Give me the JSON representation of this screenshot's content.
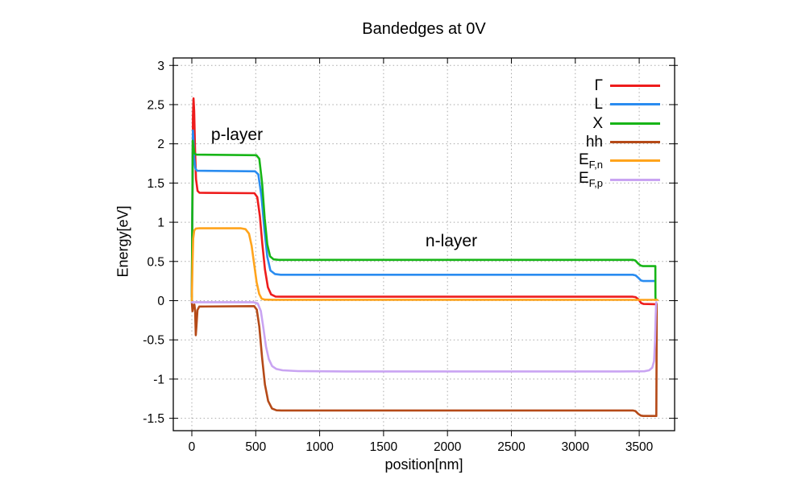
{
  "title": "Bandedges at 0V",
  "axis": {
    "xlabel": "position[nm]",
    "ylabel": "Energy[eV]"
  },
  "annotations": [
    {
      "text": "p-layer"
    },
    {
      "text": "n-layer"
    }
  ],
  "chart_data": {
    "type": "line",
    "title": "Bandedges at 0V",
    "xlabel": "position[nm]",
    "ylabel": "Energy[eV]",
    "xlim": [
      -145,
      3777
    ],
    "ylim": [
      -1.658,
      3.095
    ],
    "xticks": [
      0,
      500,
      1000,
      1500,
      2000,
      2500,
      3000,
      3500
    ],
    "xtick_labels": [
      "0",
      "500",
      "1000",
      "1500",
      "2000",
      "2500",
      "3000",
      "3500"
    ],
    "yticks": [
      -1.5,
      -1,
      -0.5,
      0,
      0.5,
      1,
      1.5,
      2,
      2.5,
      3
    ],
    "ytick_labels": [
      "-1.5",
      "-1",
      "-0.5",
      "0",
      "0.5",
      "1",
      "1.5",
      "2",
      "2.5",
      "3"
    ],
    "grid": true,
    "legend_position": "top-right-inside",
    "series": [
      {
        "id": "gamma",
        "label_base": "Γ",
        "label_sub": "",
        "color": "#ee1c1c",
        "points": [
          [
            0,
            0.05
          ],
          [
            5,
            1.2
          ],
          [
            9,
            2.35
          ],
          [
            13,
            2.58
          ],
          [
            18,
            2.42
          ],
          [
            25,
            1.92
          ],
          [
            33,
            1.55
          ],
          [
            45,
            1.4
          ],
          [
            60,
            1.375
          ],
          [
            490,
            1.37
          ],
          [
            512,
            1.32
          ],
          [
            532,
            1.08
          ],
          [
            552,
            0.72
          ],
          [
            572,
            0.4
          ],
          [
            595,
            0.17
          ],
          [
            620,
            0.08
          ],
          [
            655,
            0.052
          ],
          [
            700,
            0.05
          ],
          [
            3450,
            0.05
          ],
          [
            3472,
            0.045
          ],
          [
            3495,
            0.015
          ],
          [
            3515,
            -0.03
          ],
          [
            3535,
            -0.042
          ],
          [
            3635,
            -0.045
          ]
        ]
      },
      {
        "id": "L",
        "label_base": "L",
        "label_sub": "",
        "color": "#2a8cf0",
        "points": [
          [
            0,
            0.05
          ],
          [
            4,
            1.1
          ],
          [
            8,
            2.17
          ],
          [
            12,
            2.08
          ],
          [
            18,
            1.82
          ],
          [
            27,
            1.69
          ],
          [
            40,
            1.657
          ],
          [
            495,
            1.65
          ],
          [
            520,
            1.61
          ],
          [
            545,
            1.33
          ],
          [
            567,
            0.92
          ],
          [
            590,
            0.56
          ],
          [
            615,
            0.385
          ],
          [
            650,
            0.34
          ],
          [
            695,
            0.33
          ],
          [
            3450,
            0.33
          ],
          [
            3472,
            0.322
          ],
          [
            3494,
            0.29
          ],
          [
            3514,
            0.258
          ],
          [
            3532,
            0.25
          ],
          [
            3624,
            0.25
          ]
        ]
      },
      {
        "id": "X",
        "label_base": "X",
        "label_sub": "",
        "color": "#17b517",
        "points": [
          [
            0,
            0.0
          ],
          [
            3,
            1.0
          ],
          [
            7,
            2.04
          ],
          [
            12,
            1.96
          ],
          [
            20,
            1.88
          ],
          [
            35,
            1.862
          ],
          [
            505,
            1.855
          ],
          [
            528,
            1.81
          ],
          [
            550,
            1.5
          ],
          [
            570,
            1.05
          ],
          [
            590,
            0.72
          ],
          [
            612,
            0.565
          ],
          [
            640,
            0.527
          ],
          [
            680,
            0.52
          ],
          [
            3450,
            0.52
          ],
          [
            3470,
            0.512
          ],
          [
            3492,
            0.472
          ],
          [
            3512,
            0.447
          ],
          [
            3530,
            0.44
          ],
          [
            3626,
            0.44
          ],
          [
            3627,
            0.05
          ],
          [
            3628,
            0.02
          ]
        ]
      },
      {
        "id": "hh",
        "label_base": "hh",
        "label_sub": "",
        "color": "#b54a18",
        "points": [
          [
            0,
            -0.02
          ],
          [
            5,
            -0.135
          ],
          [
            11,
            -0.06
          ],
          [
            20,
            -0.05
          ],
          [
            26,
            -0.13
          ],
          [
            31,
            -0.44
          ],
          [
            36,
            -0.33
          ],
          [
            44,
            -0.12
          ],
          [
            58,
            -0.075
          ],
          [
            488,
            -0.07
          ],
          [
            508,
            -0.115
          ],
          [
            528,
            -0.33
          ],
          [
            550,
            -0.73
          ],
          [
            572,
            -1.07
          ],
          [
            597,
            -1.28
          ],
          [
            627,
            -1.375
          ],
          [
            662,
            -1.398
          ],
          [
            700,
            -1.4
          ],
          [
            3450,
            -1.4
          ],
          [
            3470,
            -1.408
          ],
          [
            3492,
            -1.443
          ],
          [
            3512,
            -1.465
          ],
          [
            3530,
            -1.47
          ],
          [
            3634,
            -1.47
          ],
          [
            3636,
            -0.75
          ],
          [
            3637,
            -0.04
          ]
        ]
      },
      {
        "id": "efn",
        "label_base": "E",
        "label_sub": "F,n",
        "color": "#ffa41c",
        "points": [
          [
            0,
            0.0
          ],
          [
            5,
            0.45
          ],
          [
            11,
            0.79
          ],
          [
            19,
            0.895
          ],
          [
            32,
            0.92
          ],
          [
            60,
            0.924
          ],
          [
            385,
            0.923
          ],
          [
            420,
            0.912
          ],
          [
            447,
            0.855
          ],
          [
            468,
            0.7
          ],
          [
            487,
            0.475
          ],
          [
            507,
            0.235
          ],
          [
            527,
            0.085
          ],
          [
            547,
            0.025
          ],
          [
            572,
            0.013
          ],
          [
            640,
            0.011
          ],
          [
            3642,
            0.01
          ]
        ]
      },
      {
        "id": "efp",
        "label_base": "E",
        "label_sub": "F,p",
        "color": "#c9a4f2",
        "points": [
          [
            0,
            -0.02
          ],
          [
            480,
            -0.02
          ],
          [
            515,
            -0.035
          ],
          [
            540,
            -0.13
          ],
          [
            560,
            -0.35
          ],
          [
            580,
            -0.585
          ],
          [
            602,
            -0.745
          ],
          [
            628,
            -0.835
          ],
          [
            662,
            -0.872
          ],
          [
            710,
            -0.888
          ],
          [
            830,
            -0.898
          ],
          [
            1200,
            -0.902
          ],
          [
            3350,
            -0.902
          ],
          [
            3540,
            -0.9
          ],
          [
            3578,
            -0.888
          ],
          [
            3602,
            -0.855
          ],
          [
            3616,
            -0.77
          ],
          [
            3624,
            -0.52
          ],
          [
            3629,
            -0.2
          ],
          [
            3632,
            -0.05
          ],
          [
            3634,
            -0.02
          ]
        ]
      }
    ]
  }
}
